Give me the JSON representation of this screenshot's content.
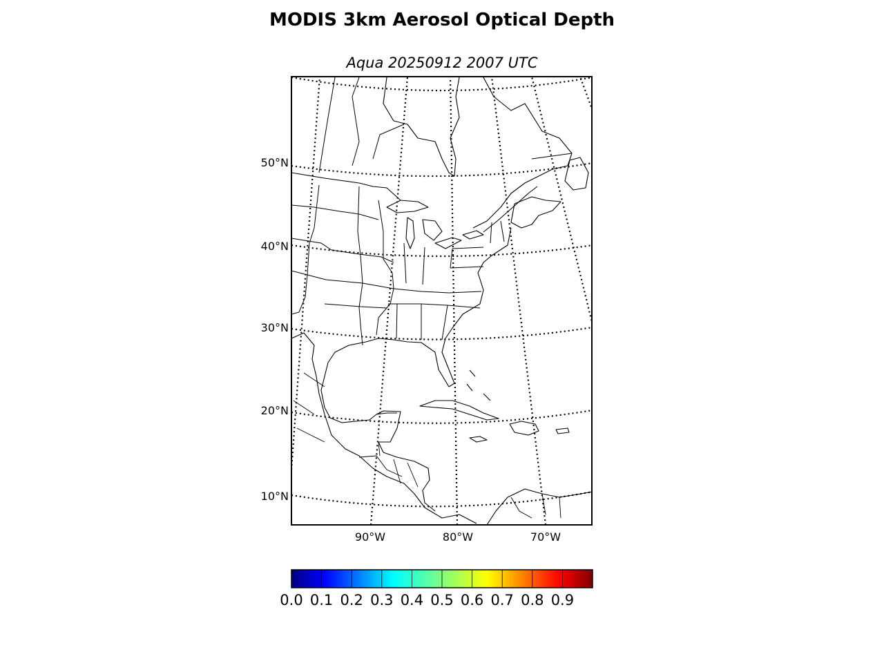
{
  "title": "MODIS 3km Aerosol Optical Depth",
  "subtitle": "Aqua 20250912 2007 UTC",
  "map": {
    "projection": "conic (Lambert-like)",
    "parallels_labels": [
      "10°N",
      "20°N",
      "30°N",
      "40°N",
      "50°N"
    ],
    "meridian_labels": [
      "90°W",
      "80°W",
      "70°W"
    ],
    "gridlines": "dotted",
    "features": [
      "coastlines",
      "country borders",
      "US state borders",
      "Canadian province borders"
    ],
    "aerosol_data_visible": false
  },
  "colorbar": {
    "colormap": "jet",
    "min": 0.0,
    "max": 1.0,
    "ticks": [
      "0.0",
      "0.1",
      "0.2",
      "0.3",
      "0.4",
      "0.5",
      "0.6",
      "0.7",
      "0.8",
      "0.9"
    ],
    "colors": [
      "#00007f",
      "#0000ff",
      "#007fff",
      "#00ffff",
      "#7fff7f",
      "#ffff00",
      "#ff7f00",
      "#ff0000",
      "#7f0000"
    ]
  }
}
